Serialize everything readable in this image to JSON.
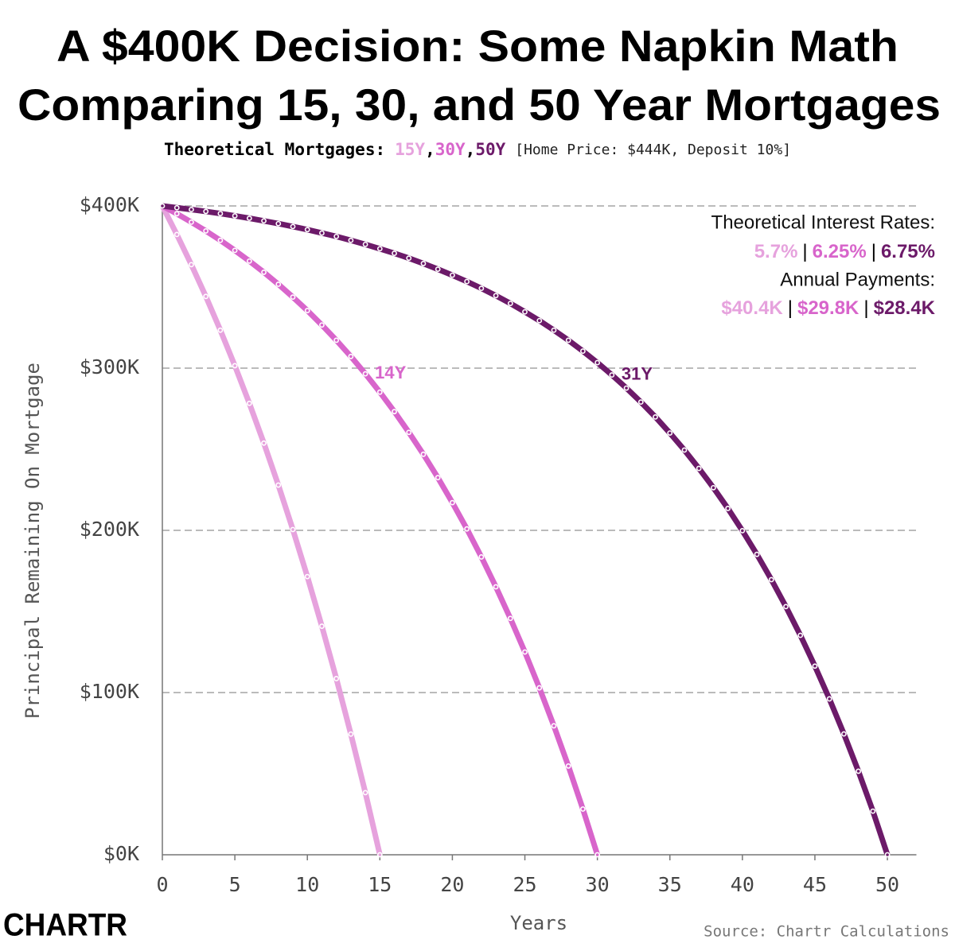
{
  "chart_data": {
    "type": "line",
    "title": [
      "A $400K Decision: Some Napkin Math",
      "Comparing 15, 30, and 50 Year Mortgages"
    ],
    "subtitle": {
      "prefix": "Theoretical Mortgages:",
      "separator": ",",
      "note": "[Home Price: $444K, Deposit 10%]"
    },
    "x_label": "Years",
    "y_label": "Principal Remaining On Mortgage",
    "source": "Source: Chartr Calculations",
    "logo": "CHARTR",
    "rates_title": "Theoretical Interest Rates:",
    "payments_title": "Annual Payments:",
    "info_separator": "|",
    "x": [
      0,
      1,
      2,
      3,
      4,
      5,
      6,
      7,
      8,
      9,
      10,
      11,
      12,
      13,
      14,
      15,
      16,
      17,
      18,
      19,
      20,
      21,
      22,
      23,
      24,
      25,
      26,
      27,
      28,
      29,
      30,
      31,
      32,
      33,
      34,
      35,
      36,
      37,
      38,
      39,
      40,
      41,
      42,
      43,
      44,
      45,
      46,
      47,
      48,
      49,
      50
    ],
    "series": [
      {
        "name": "15Y",
        "color": "#e6a2dd",
        "rate": "5.7%",
        "payment": "$40.4K",
        "values": [
          400,
          382.4,
          363.8,
          344.2,
          323.4,
          301.5,
          278.3,
          253.8,
          227.9,
          200.5,
          171.5,
          140.9,
          108.6,
          74.4,
          38.3,
          0,
          null,
          null,
          null,
          null,
          null,
          null,
          null,
          null,
          null,
          null,
          null,
          null,
          null,
          null,
          null,
          null,
          null,
          null,
          null,
          null,
          null,
          null,
          null,
          null,
          null,
          null,
          null,
          null,
          null,
          null,
          null,
          null,
          null,
          null,
          null
        ]
      },
      {
        "name": "30Y",
        "color": "#d865cb",
        "rate": "6.25%",
        "payment": "$29.8K",
        "annotation": {
          "text": "14Y",
          "x": 14
        },
        "values": [
          400,
          395.2,
          390,
          384.6,
          378.8,
          372.6,
          366,
          359.1,
          351.7,
          343.8,
          335.5,
          326.6,
          317.2,
          307.2,
          296.5,
          285.2,
          273.2,
          260.4,
          246.9,
          232.5,
          217.1,
          200.9,
          183.6,
          165.2,
          145.7,
          125,
          102.9,
          79.5,
          54.7,
          28.2,
          0,
          null,
          null,
          null,
          null,
          null,
          null,
          null,
          null,
          null,
          null,
          null,
          null,
          null,
          null,
          null,
          null,
          null,
          null,
          null,
          null
        ]
      },
      {
        "name": "50Y",
        "color": "#6c1a69",
        "rate": "6.75%",
        "payment": "$28.4K",
        "annotation": {
          "text": "31Y",
          "x": 31
        },
        "values": [
          400,
          398.9,
          397.8,
          396.6,
          395.3,
          393.9,
          392.4,
          390.8,
          389.1,
          387.3,
          385.4,
          383.3,
          381.2,
          378.8,
          376.3,
          373.6,
          370.8,
          367.8,
          364.5,
          361,
          357.3,
          353.4,
          349.2,
          344.7,
          339.9,
          334.7,
          329.3,
          323.4,
          317.2,
          310.5,
          303.4,
          295.8,
          287.7,
          279.1,
          269.9,
          260,
          249.5,
          238.2,
          226.3,
          213.5,
          199.8,
          185.2,
          169.6,
          153,
          135.3,
          116.3,
          96.1,
          74.5,
          51.5,
          26.9,
          0
        ]
      }
    ],
    "xlim": [
      0,
      52
    ],
    "xticks": [
      0,
      5,
      10,
      15,
      20,
      25,
      30,
      35,
      40,
      45,
      50
    ],
    "ylim": [
      0,
      400
    ],
    "yticks": [
      {
        "value": 0,
        "label": "$0K"
      },
      {
        "value": 100,
        "label": "$100K"
      },
      {
        "value": 200,
        "label": "$200K"
      },
      {
        "value": 300,
        "label": "$300K"
      },
      {
        "value": 400,
        "label": "$400K"
      }
    ],
    "grid": true
  }
}
